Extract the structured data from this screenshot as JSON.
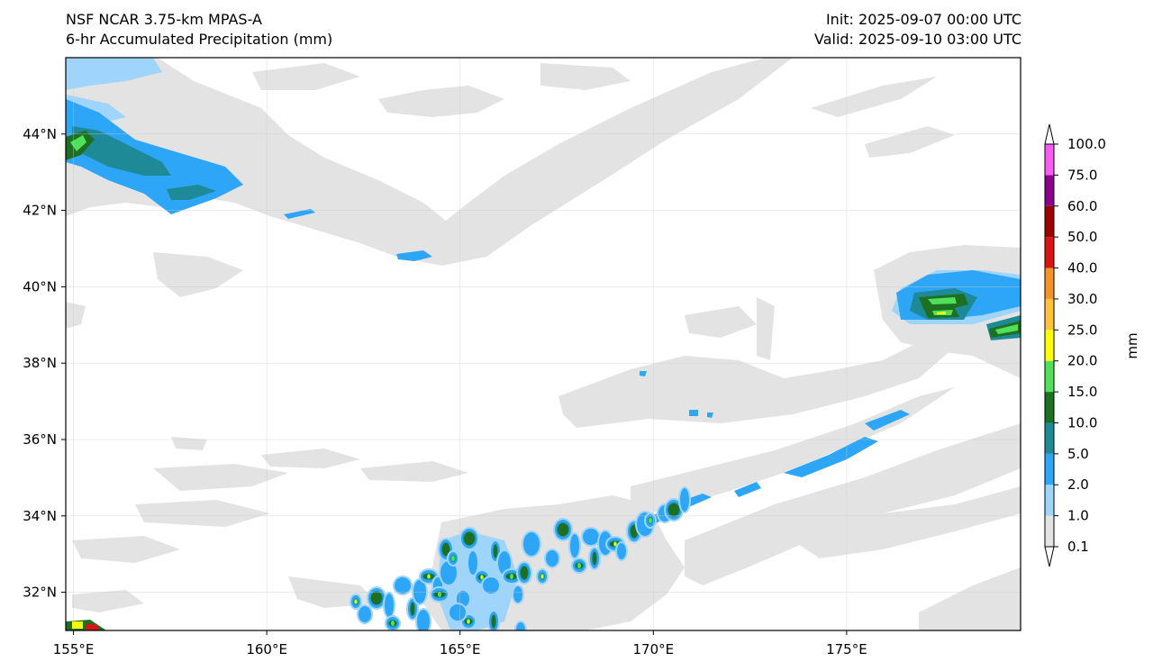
{
  "title": {
    "left_line1": "NSF NCAR 3.75-km MPAS-A",
    "left_line2": "6-hr Accumulated Precipitation (mm)",
    "right_line1": "Init: 2025-09-07 00:00 UTC",
    "right_line2": "Valid: 2025-09-10 03:00 UTC"
  },
  "map": {
    "lon_range": [
      154.8,
      179.5
    ],
    "lat_range": [
      31.0,
      46.0
    ],
    "lon_ticks": [
      {
        "value": 155,
        "label": "155°E"
      },
      {
        "value": 160,
        "label": "160°E"
      },
      {
        "value": 165,
        "label": "165°E"
      },
      {
        "value": 170,
        "label": "170°E"
      },
      {
        "value": 175,
        "label": "175°E"
      }
    ],
    "lat_ticks": [
      {
        "value": 32,
        "label": "32°N"
      },
      {
        "value": 34,
        "label": "34°N"
      },
      {
        "value": 36,
        "label": "36°N"
      },
      {
        "value": 38,
        "label": "38°N"
      },
      {
        "value": 40,
        "label": "40°N"
      },
      {
        "value": 42,
        "label": "42°N"
      },
      {
        "value": 44,
        "label": "44°N"
      }
    ],
    "gridlines": true
  },
  "colorbar": {
    "unit_label": "mm",
    "levels": [
      "0.1",
      "1.0",
      "2.0",
      "5.0",
      "10.0",
      "15.0",
      "20.0",
      "25.0",
      "30.0",
      "40.0",
      "50.0",
      "60.0",
      "75.0",
      "100.0"
    ],
    "colors": [
      "#e3e3e3",
      "#9fd4fb",
      "#2ea6f8",
      "#1e8a98",
      "#1d6f22",
      "#52e05b",
      "#ffff00",
      "#ffc23c",
      "#f4922b",
      "#d91414",
      "#9b0000",
      "#8a008a",
      "#f95cf2"
    ],
    "under_color": "#ffffff",
    "over_color": "#ffffff",
    "extend": "both"
  }
}
